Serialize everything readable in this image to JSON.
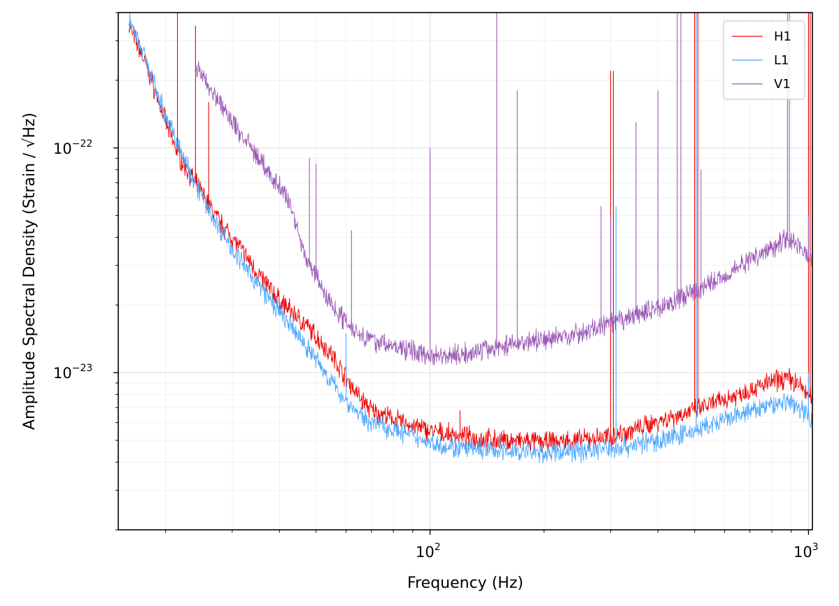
{
  "chart_data": {
    "type": "line",
    "xlabel": "Frequency (Hz)",
    "ylabel": "Amplitude Spectral Density (Strain / √Hz)",
    "xscale": "log",
    "yscale": "log",
    "xlim": [
      15,
      1024
    ],
    "ylim": [
      2e-24,
      4e-22
    ],
    "grid": true,
    "legend_position": "top-right",
    "x_major_ticks": [
      {
        "value": 100,
        "label": "10",
        "exp": "2"
      },
      {
        "value": 1000,
        "label": "10",
        "exp": "3"
      }
    ],
    "y_major_ticks": [
      {
        "value": 1e-23,
        "label": "10",
        "exp": "−23"
      },
      {
        "value": 1e-22,
        "label": "10",
        "exp": "−22"
      }
    ],
    "series": [
      {
        "name": "H1",
        "color": "#ee0000",
        "points": [
          [
            16,
            3.5e-22
          ],
          [
            17,
            2.8e-22
          ],
          [
            18,
            2.2e-22
          ],
          [
            19,
            1.7e-22
          ],
          [
            20,
            1.3e-22
          ],
          [
            21,
            1.05e-22
          ],
          [
            22,
            8.8e-23
          ],
          [
            24,
            7e-23
          ],
          [
            26,
            5.6e-23
          ],
          [
            28,
            4.6e-23
          ],
          [
            30,
            4e-23
          ],
          [
            33,
            3.2e-23
          ],
          [
            36,
            2.6e-23
          ],
          [
            40,
            2.1e-23
          ],
          [
            45,
            1.75e-23
          ],
          [
            50,
            1.45e-23
          ],
          [
            55,
            1.2e-23
          ],
          [
            60,
            9.5e-24
          ],
          [
            65,
            7.8e-24
          ],
          [
            70,
            6.8e-24
          ],
          [
            80,
            6.2e-24
          ],
          [
            90,
            5.8e-24
          ],
          [
            100,
            5.5e-24
          ],
          [
            120,
            5.2e-24
          ],
          [
            150,
            5e-24
          ],
          [
            200,
            4.9e-24
          ],
          [
            250,
            5e-24
          ],
          [
            300,
            5.2e-24
          ],
          [
            350,
            5.6e-24
          ],
          [
            400,
            6.1e-24
          ],
          [
            500,
            6.8e-24
          ],
          [
            600,
            7.6e-24
          ],
          [
            700,
            8.4e-24
          ],
          [
            800,
            9.1e-24
          ],
          [
            880,
            9.5e-24
          ],
          [
            950,
            8.8e-24
          ],
          [
            1024,
            7.5e-24
          ]
        ],
        "peaks": [
          [
            21.5,
            4e-22
          ],
          [
            24,
            3.5e-22
          ],
          [
            26,
            1.6e-22
          ],
          [
            37,
            2.7e-23
          ],
          [
            45,
            1.8e-23
          ],
          [
            60,
            1e-23
          ],
          [
            120,
            6.8e-24
          ],
          [
            300,
            2.2e-22
          ],
          [
            305,
            2.2e-22
          ],
          [
            500,
            4e-22
          ],
          [
            510,
            4e-22
          ],
          [
            1000,
            4e-22
          ],
          [
            1010,
            4e-22
          ]
        ]
      },
      {
        "name": "L1",
        "color": "#4ba6ff",
        "points": [
          [
            16,
            3.8e-22
          ],
          [
            17,
            3e-22
          ],
          [
            18,
            2.3e-22
          ],
          [
            19,
            1.75e-22
          ],
          [
            20,
            1.4e-22
          ],
          [
            21,
            1.15e-22
          ],
          [
            22,
            9.5e-23
          ],
          [
            24,
            7e-23
          ],
          [
            26,
            5.3e-23
          ],
          [
            28,
            4.3e-23
          ],
          [
            30,
            3.6e-23
          ],
          [
            33,
            2.8e-23
          ],
          [
            36,
            2.35e-23
          ],
          [
            40,
            1.85e-23
          ],
          [
            45,
            1.45e-23
          ],
          [
            50,
            1.15e-23
          ],
          [
            55,
            9e-24
          ],
          [
            60,
            7.5e-24
          ],
          [
            65,
            6.5e-24
          ],
          [
            70,
            6e-24
          ],
          [
            80,
            5.6e-24
          ],
          [
            90,
            5.2e-24
          ],
          [
            100,
            4.9e-24
          ],
          [
            120,
            4.6e-24
          ],
          [
            150,
            4.5e-24
          ],
          [
            200,
            4.4e-24
          ],
          [
            250,
            4.5e-24
          ],
          [
            300,
            4.6e-24
          ],
          [
            350,
            4.8e-24
          ],
          [
            400,
            5e-24
          ],
          [
            500,
            5.5e-24
          ],
          [
            600,
            6.1e-24
          ],
          [
            700,
            6.7e-24
          ],
          [
            800,
            7.2e-24
          ],
          [
            880,
            7.5e-24
          ],
          [
            950,
            7e-24
          ],
          [
            1024,
            6.2e-24
          ]
        ],
        "peaks": [
          [
            60,
            1.5e-23
          ],
          [
            310,
            5.5e-23
          ],
          [
            505,
            4e-22
          ],
          [
            1000,
            1e-23
          ]
        ]
      },
      {
        "name": "V1",
        "color": "#9b59b6",
        "points": [
          [
            24,
            2.3e-22
          ],
          [
            26,
            1.9e-22
          ],
          [
            28,
            1.55e-22
          ],
          [
            30,
            1.3e-22
          ],
          [
            33,
            1.05e-22
          ],
          [
            36,
            8.6e-23
          ],
          [
            38,
            7.3e-23
          ],
          [
            40,
            6.8e-23
          ],
          [
            43,
            5.5e-23
          ],
          [
            46,
            3.6e-23
          ],
          [
            48,
            3e-23
          ],
          [
            50,
            2.7e-23
          ],
          [
            53,
            2.2e-23
          ],
          [
            57,
            1.85e-23
          ],
          [
            60,
            1.7e-23
          ],
          [
            65,
            1.5e-23
          ],
          [
            70,
            1.4e-23
          ],
          [
            80,
            1.3e-23
          ],
          [
            90,
            1.25e-23
          ],
          [
            100,
            1.2e-23
          ],
          [
            120,
            1.2e-23
          ],
          [
            150,
            1.3e-23
          ],
          [
            180,
            1.38e-23
          ],
          [
            200,
            1.4e-23
          ],
          [
            250,
            1.5e-23
          ],
          [
            300,
            1.65e-23
          ],
          [
            350,
            1.8e-23
          ],
          [
            400,
            1.95e-23
          ],
          [
            450,
            2.1e-23
          ],
          [
            500,
            2.3e-23
          ],
          [
            600,
            2.7e-23
          ],
          [
            700,
            3.2e-23
          ],
          [
            800,
            3.6e-23
          ],
          [
            870,
            4e-23
          ],
          [
            920,
            3.8e-23
          ],
          [
            1000,
            3.3e-23
          ],
          [
            1024,
            3.1e-23
          ]
        ],
        "peaks": [
          [
            48,
            9e-23
          ],
          [
            50,
            8.5e-23
          ],
          [
            62,
            4.3e-23
          ],
          [
            100,
            1e-22
          ],
          [
            150,
            4e-22
          ],
          [
            170,
            1.8e-22
          ],
          [
            283,
            5.5e-23
          ],
          [
            300,
            5e-23
          ],
          [
            350,
            1.3e-22
          ],
          [
            400,
            1.8e-22
          ],
          [
            450,
            4e-22
          ],
          [
            460,
            4e-22
          ],
          [
            520,
            8e-23
          ],
          [
            880,
            4e-22
          ],
          [
            890,
            4e-22
          ],
          [
            1000,
            5e-23
          ]
        ]
      }
    ]
  }
}
